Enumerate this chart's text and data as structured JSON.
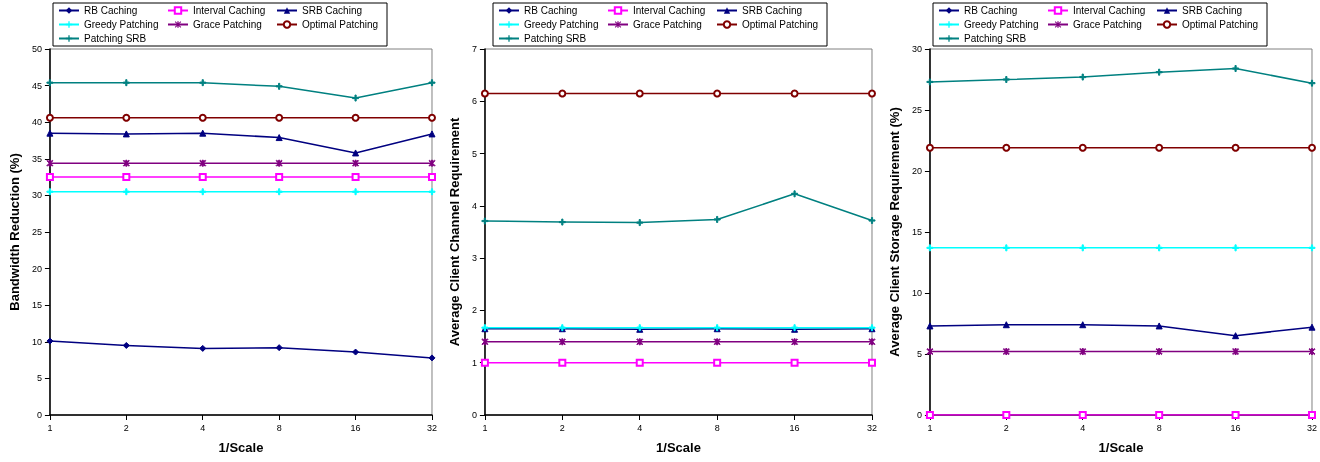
{
  "chart_data": [
    {
      "type": "line",
      "ylabel": "Bandwidth Reduction (%)",
      "xlabel": "1/Scale",
      "categories": [
        "1",
        "2",
        "4",
        "8",
        "16",
        "32"
      ],
      "ylim": [
        0,
        50
      ],
      "yticks": [
        0,
        5,
        10,
        15,
        20,
        25,
        30,
        35,
        40,
        45,
        50
      ],
      "grid": false,
      "legend": "top",
      "series": [
        {
          "name": "RB Caching",
          "color": "#000080",
          "marker": "diamond",
          "values": [
            10.1,
            9.5,
            9.1,
            9.2,
            8.6,
            7.8
          ]
        },
        {
          "name": "Interval Caching",
          "color": "#ff00ff",
          "marker": "square",
          "values": [
            32.5,
            32.5,
            32.5,
            32.5,
            32.5,
            32.5
          ]
        },
        {
          "name": "SRB Caching",
          "color": "#000080",
          "marker": "triangle",
          "values": [
            38.5,
            38.4,
            38.5,
            37.9,
            35.8,
            38.4
          ]
        },
        {
          "name": "Greedy Patching",
          "color": "#00ffff",
          "marker": "cross",
          "values": [
            30.5,
            30.5,
            30.5,
            30.5,
            30.5,
            30.5
          ]
        },
        {
          "name": "Grace Patching",
          "color": "#800080",
          "marker": "star",
          "values": [
            34.4,
            34.4,
            34.4,
            34.4,
            34.4,
            34.4
          ]
        },
        {
          "name": "Optimal Patching",
          "color": "#800000",
          "marker": "circle",
          "values": [
            40.6,
            40.6,
            40.6,
            40.6,
            40.6,
            40.6
          ]
        },
        {
          "name": "Patching SRB",
          "color": "#008080",
          "marker": "cross",
          "values": [
            45.4,
            45.4,
            45.4,
            44.9,
            43.3,
            45.4
          ]
        }
      ]
    },
    {
      "type": "line",
      "ylabel": "Average Client Channel Requirement",
      "xlabel": "1/Scale",
      "categories": [
        "1",
        "2",
        "4",
        "8",
        "16",
        "32"
      ],
      "ylim": [
        0,
        7
      ],
      "yticks": [
        0,
        1,
        2,
        3,
        4,
        5,
        6,
        7
      ],
      "grid": false,
      "legend": "top",
      "series": [
        {
          "name": "RB Caching",
          "color": "#000080",
          "marker": "diamond",
          "values": [
            null,
            null,
            null,
            null,
            null,
            null
          ]
        },
        {
          "name": "Interval Caching",
          "color": "#ff00ff",
          "marker": "square",
          "values": [
            1.0,
            1.0,
            1.0,
            1.0,
            1.0,
            1.0
          ]
        },
        {
          "name": "SRB Caching",
          "color": "#000080",
          "marker": "triangle",
          "values": [
            1.65,
            1.65,
            1.64,
            1.65,
            1.64,
            1.65
          ]
        },
        {
          "name": "Greedy Patching",
          "color": "#00ffff",
          "marker": "cross",
          "values": [
            1.67,
            1.67,
            1.67,
            1.67,
            1.67,
            1.67
          ]
        },
        {
          "name": "Grace Patching",
          "color": "#800080",
          "marker": "star",
          "values": [
            1.4,
            1.4,
            1.4,
            1.4,
            1.4,
            1.4
          ]
        },
        {
          "name": "Optimal Patching",
          "color": "#800000",
          "marker": "circle",
          "values": [
            6.15,
            6.15,
            6.15,
            6.15,
            6.15,
            6.15
          ]
        },
        {
          "name": "Patching SRB",
          "color": "#008080",
          "marker": "cross",
          "values": [
            3.71,
            3.69,
            3.68,
            3.74,
            4.23,
            3.72
          ]
        }
      ]
    },
    {
      "type": "line",
      "ylabel": "Average Client Storage Requirement (%)",
      "xlabel": "1/Scale",
      "categories": [
        "1",
        "2",
        "4",
        "8",
        "16",
        "32"
      ],
      "ylim": [
        0,
        30
      ],
      "yticks": [
        0,
        5,
        10,
        15,
        20,
        25,
        30
      ],
      "grid": false,
      "legend": "top",
      "series": [
        {
          "name": "RB Caching",
          "color": "#000080",
          "marker": "diamond",
          "values": [
            null,
            null,
            null,
            null,
            null,
            null
          ]
        },
        {
          "name": "Interval Caching",
          "color": "#ff00ff",
          "marker": "square",
          "values": [
            0,
            0,
            0,
            0,
            0,
            0
          ]
        },
        {
          "name": "SRB Caching",
          "color": "#000080",
          "marker": "triangle",
          "values": [
            7.3,
            7.4,
            7.4,
            7.3,
            6.5,
            7.2
          ]
        },
        {
          "name": "Greedy Patching",
          "color": "#00ffff",
          "marker": "cross",
          "values": [
            13.7,
            13.7,
            13.7,
            13.7,
            13.7,
            13.7
          ]
        },
        {
          "name": "Grace Patching",
          "color": "#800080",
          "marker": "star",
          "values": [
            5.2,
            5.2,
            5.2,
            5.2,
            5.2,
            5.2
          ]
        },
        {
          "name": "Optimal Patching",
          "color": "#800000",
          "marker": "circle",
          "values": [
            21.9,
            21.9,
            21.9,
            21.9,
            21.9,
            21.9
          ]
        },
        {
          "name": "Patching SRB",
          "color": "#008080",
          "marker": "cross",
          "values": [
            27.3,
            27.5,
            27.7,
            28.1,
            28.4,
            27.2
          ]
        }
      ]
    }
  ]
}
